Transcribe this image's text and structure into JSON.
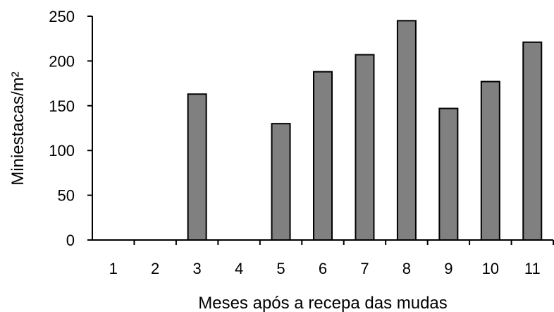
{
  "chart_data": {
    "type": "bar",
    "title": "",
    "xlabel": "Meses após a recepa das mudas",
    "ylabel": "Miniestacas/m²",
    "categories": [
      "1",
      "2",
      "3",
      "4",
      "5",
      "6",
      "7",
      "8",
      "9",
      "10",
      "11"
    ],
    "values": [
      0,
      0,
      163,
      0,
      130,
      188,
      207,
      245,
      147,
      177,
      221
    ],
    "ylim": [
      0,
      250
    ],
    "yticks": [
      "0",
      "50",
      "100",
      "150",
      "200",
      "250"
    ],
    "grid": false,
    "legend": "none",
    "bar_color": "#808080",
    "bar_edge_color": "#000000"
  }
}
